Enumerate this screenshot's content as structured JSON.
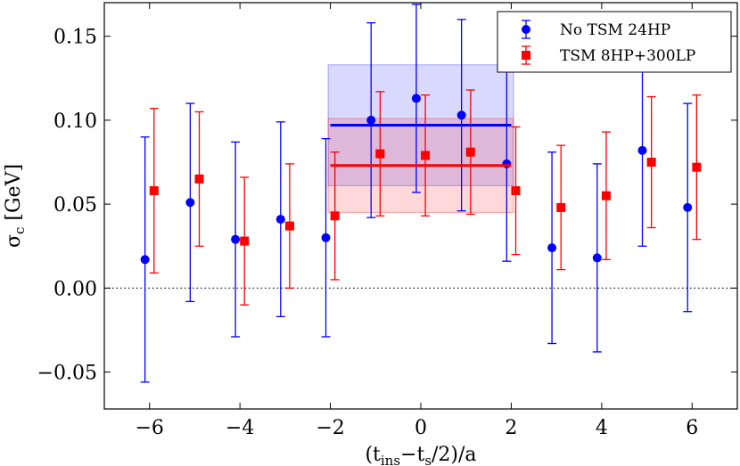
{
  "chart_data": {
    "type": "scatter",
    "xlabel": "(t_ins−t_s/2)/a",
    "ylabel": "σ_c [GeV]",
    "xlim": [
      -7,
      7
    ],
    "ylim": [
      -0.072,
      0.17
    ],
    "xticks": [
      -6,
      -4,
      -2,
      0,
      2,
      4,
      6
    ],
    "xtick_labels": [
      "−6",
      "−4",
      "−2",
      "0",
      "2",
      "4",
      "6"
    ],
    "yticks": [
      -0.05,
      0.0,
      0.05,
      0.1,
      0.15
    ],
    "ytick_labels": [
      "−0.05",
      "0.00",
      "0.05",
      "0.10",
      "0.15"
    ],
    "zero_line": true,
    "legend_position": "top-right",
    "series": [
      {
        "name": "No TSM 24HP",
        "color": "#0000ff",
        "marker": "circle",
        "x_offset": -0.1,
        "x": [
          -6,
          -5,
          -4,
          -3,
          -2,
          -1,
          0,
          1,
          2,
          3,
          4,
          5,
          6
        ],
        "y": [
          0.017,
          0.051,
          0.029,
          0.041,
          0.03,
          0.1,
          0.113,
          0.103,
          0.074,
          0.024,
          0.018,
          0.082,
          0.048
        ],
        "err": [
          0.073,
          0.059,
          0.058,
          0.058,
          0.059,
          0.058,
          0.056,
          0.057,
          0.058,
          0.057,
          0.056,
          0.057,
          0.062
        ],
        "fit": {
          "x_range": [
            -2,
            2
          ],
          "value": 0.097,
          "band": [
            0.061,
            0.133
          ]
        }
      },
      {
        "name": "TSM 8HP+300LP",
        "color": "#ff0000",
        "marker": "square",
        "x_offset": 0.1,
        "x": [
          -6,
          -5,
          -4,
          -3,
          -2,
          -1,
          0,
          1,
          2,
          3,
          4,
          5,
          6
        ],
        "y": [
          0.058,
          0.065,
          0.028,
          0.037,
          0.043,
          0.08,
          0.079,
          0.081,
          0.058,
          0.048,
          0.055,
          0.075,
          0.072
        ],
        "err": [
          0.049,
          0.04,
          0.038,
          0.037,
          0.038,
          0.037,
          0.036,
          0.037,
          0.038,
          0.037,
          0.038,
          0.039,
          0.043
        ],
        "fit": {
          "x_range": [
            -2,
            2
          ],
          "value": 0.073,
          "band": [
            0.045,
            0.101
          ]
        }
      }
    ]
  }
}
